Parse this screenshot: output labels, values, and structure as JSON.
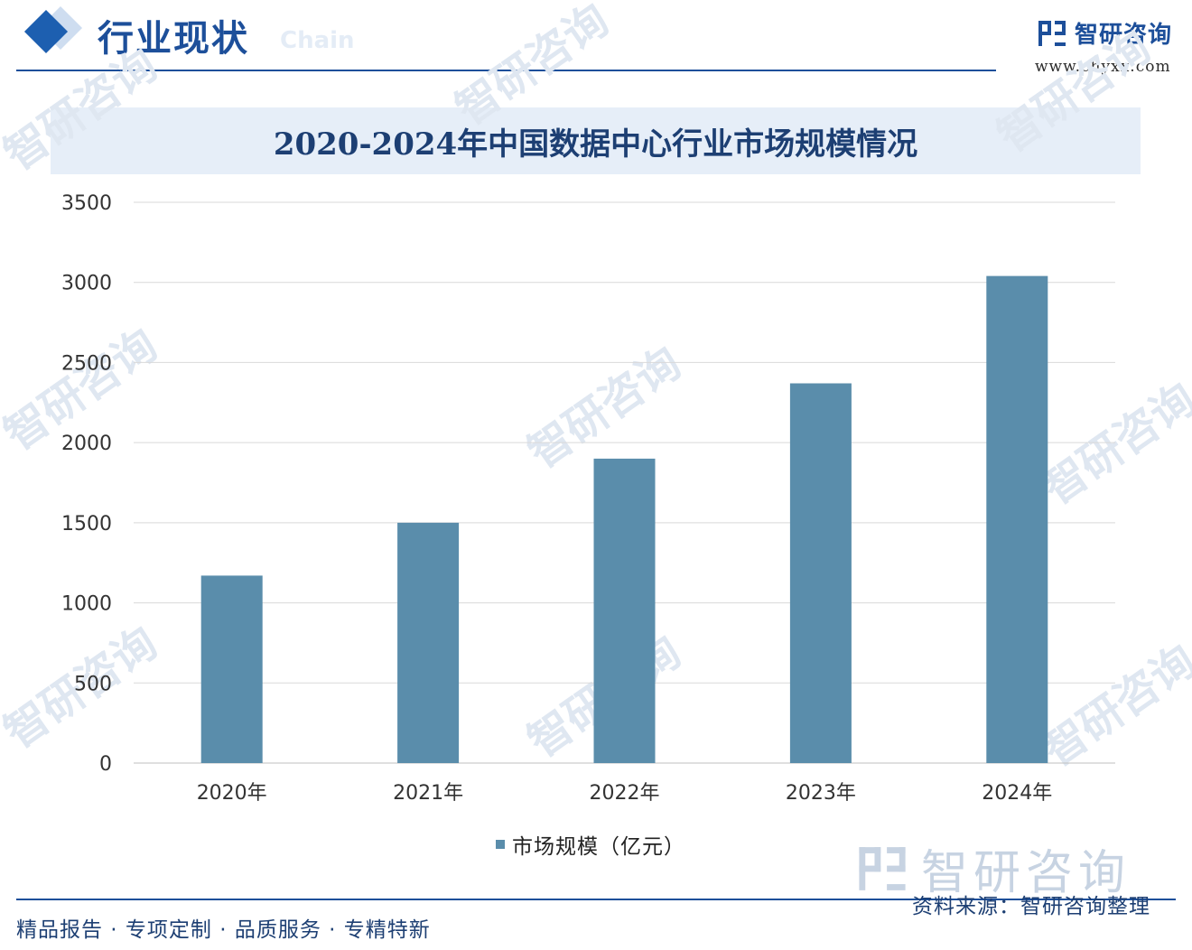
{
  "header": {
    "section_title": "行业现状",
    "section_subtitle": "Chain",
    "brand_name": "智研咨询",
    "brand_url": "www.chyxx.com"
  },
  "colors": {
    "accent": "#1d4f9a",
    "bar": "#5a8dab",
    "banner": "#e6eef8",
    "grid": "#d9d9d9"
  },
  "watermark_text": "智研咨询",
  "chart_data": {
    "type": "bar",
    "title": "2020-2024年中国数据中心行业市场规模情况",
    "categories": [
      "2020年",
      "2021年",
      "2022年",
      "2023年",
      "2024年"
    ],
    "series": [
      {
        "name": "市场规模（亿元）",
        "values": [
          1170,
          1500,
          1900,
          2370,
          3040
        ]
      }
    ],
    "xlabel": "",
    "ylabel": "",
    "ylim": [
      0,
      3500
    ],
    "yticks": [
      0,
      500,
      1000,
      1500,
      2000,
      2500,
      3000,
      3500
    ],
    "grid": true,
    "legend": "bottom-center"
  },
  "footer": {
    "tagline": "精品报告 · 专项定制 · 品质服务 · 专精特新",
    "source": "资料来源：智研咨询整理",
    "logo_name": "智研咨询"
  }
}
